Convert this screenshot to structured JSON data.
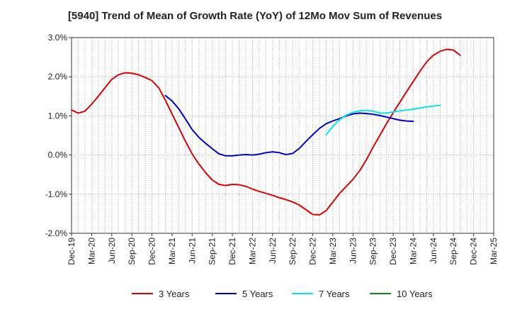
{
  "chart_data": {
    "type": "line",
    "title": "[5940]  Trend of Mean of Growth Rate (YoY) of 12Mo Mov Sum of Revenues",
    "xlabel": "",
    "ylabel": "",
    "ylim": [
      -2.0,
      3.0
    ],
    "y_ticks": [
      3.0,
      2.0,
      1.0,
      0.0,
      -1.0,
      -2.0
    ],
    "y_tick_labels": [
      "3.0%",
      "2.0%",
      "1.0%",
      "0.0%",
      "-1.0%",
      "-2.0%"
    ],
    "x_start": "Dec-19",
    "x_months": 63,
    "x_ticks": [
      0,
      3,
      6,
      9,
      12,
      15,
      18,
      21,
      24,
      27,
      30,
      33,
      36,
      39,
      42,
      45,
      48,
      51,
      54,
      57,
      60,
      63
    ],
    "x_tick_labels": [
      "Dec-19",
      "Mar-20",
      "Jun-20",
      "Sep-20",
      "Dec-20",
      "Mar-21",
      "Jun-21",
      "Sep-21",
      "Dec-21",
      "Mar-22",
      "Jun-22",
      "Sep-22",
      "Dec-22",
      "Mar-23",
      "Jun-23",
      "Sep-23",
      "Dec-23",
      "Mar-24",
      "Jun-24",
      "Sep-24",
      "Dec-24",
      "Mar-25"
    ],
    "grid": true,
    "legend_position": "bottom",
    "series": [
      {
        "name": "3 Years",
        "color": "#dd0000",
        "start": 0,
        "values": [
          1.15,
          1.07,
          1.12,
          1.3,
          1.5,
          1.72,
          1.93,
          2.05,
          2.1,
          2.09,
          2.05,
          1.98,
          1.9,
          1.72,
          1.4,
          1.05,
          0.7,
          0.35,
          0.03,
          -0.23,
          -0.45,
          -0.64,
          -0.75,
          -0.78,
          -0.75,
          -0.76,
          -0.8,
          -0.87,
          -0.93,
          -0.98,
          -1.03,
          -1.09,
          -1.14,
          -1.2,
          -1.28,
          -1.4,
          -1.52,
          -1.53,
          -1.42,
          -1.2,
          -0.98,
          -0.8,
          -0.62,
          -0.4,
          -0.12,
          0.2,
          0.5,
          0.8,
          1.08,
          1.35,
          1.62,
          1.88,
          2.14,
          2.38,
          2.55,
          2.65,
          2.7,
          2.68,
          2.55
        ]
      },
      {
        "name": "5 Years",
        "color": "#0000cc",
        "start": 14,
        "values": [
          1.52,
          1.38,
          1.18,
          0.92,
          0.65,
          0.45,
          0.3,
          0.16,
          0.03,
          -0.02,
          -0.02,
          0.0,
          0.01,
          0.0,
          0.02,
          0.06,
          0.08,
          0.06,
          0.01,
          0.04,
          0.17,
          0.35,
          0.52,
          0.68,
          0.8,
          0.87,
          0.93,
          1.0,
          1.05,
          1.07,
          1.06,
          1.04,
          1.01,
          0.97,
          0.93,
          0.89,
          0.87,
          0.86
        ]
      },
      {
        "name": "7 Years",
        "color": "#00e5ee",
        "start": 38,
        "values": [
          0.52,
          0.73,
          0.9,
          1.02,
          1.09,
          1.13,
          1.14,
          1.12,
          1.07,
          1.07,
          1.1,
          1.13,
          1.15,
          1.17,
          1.2,
          1.23,
          1.25,
          1.27
        ]
      },
      {
        "name": "10 Years",
        "color": "#118811",
        "start": 0,
        "values": []
      }
    ]
  }
}
